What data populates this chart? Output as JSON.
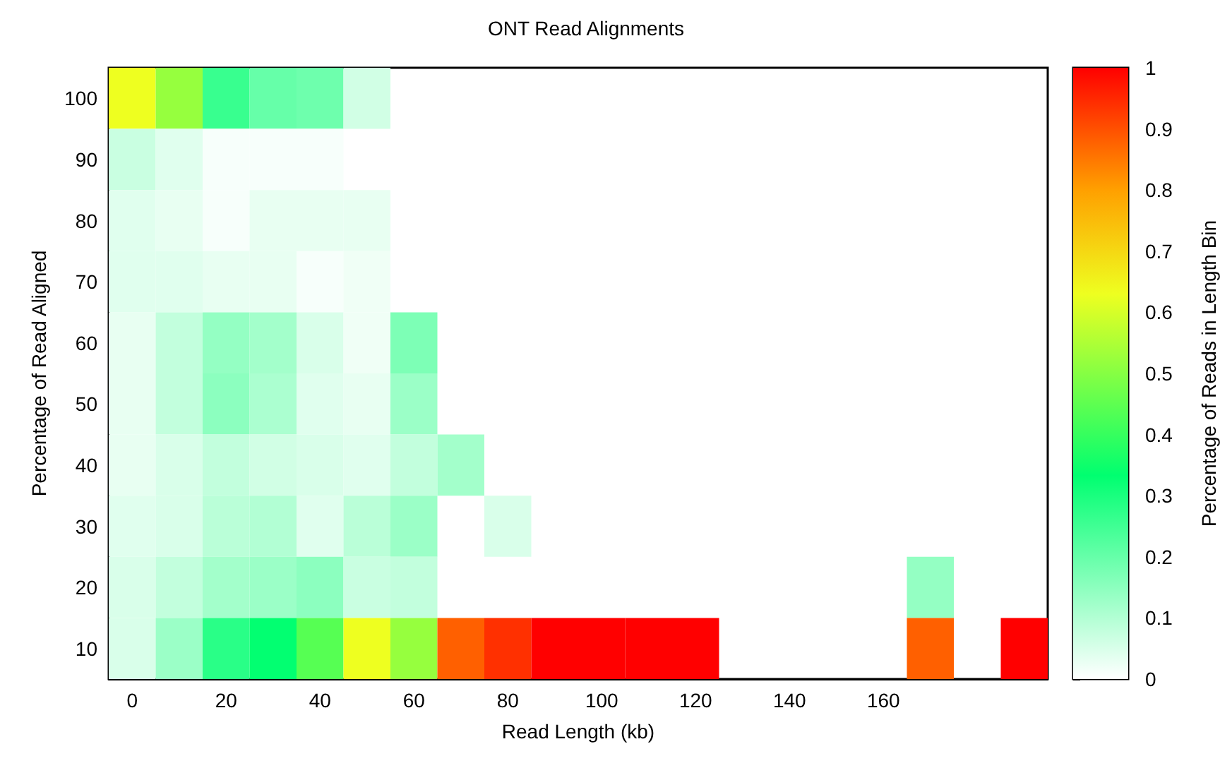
{
  "chart_data": {
    "type": "heatmap",
    "title": "ONT Read Alignments",
    "xlabel": "Read Length (kb)",
    "ylabel": "Percentage of Read Aligned",
    "clabel": "Percentage of Reads in Length Bin",
    "categories": [
      "0",
      null,
      "20",
      null,
      "40",
      null,
      "60",
      null,
      "80",
      null,
      "100",
      null,
      "120",
      null,
      "140",
      null,
      "160",
      null,
      null,
      null
    ],
    "y_categories": [
      "100",
      "90",
      "80",
      "70",
      "60",
      "50",
      "40",
      "30",
      "20",
      "10"
    ],
    "clim": [
      0,
      1
    ],
    "cticks": [
      0,
      0.1,
      0.2,
      0.3,
      0.4,
      0.5,
      0.6,
      0.7,
      0.8,
      0.9,
      1
    ],
    "cells": [
      [
        0.63,
        0.52,
        0.26,
        0.2,
        0.19,
        0.06,
        null,
        null,
        null,
        null,
        null,
        null,
        null,
        null,
        null,
        null,
        null,
        null,
        null,
        null
      ],
      [
        0.07,
        0.04,
        0.01,
        0.01,
        0.01,
        null,
        null,
        null,
        null,
        null,
        null,
        null,
        null,
        null,
        null,
        null,
        null,
        null,
        null,
        null
      ],
      [
        0.04,
        0.03,
        0.01,
        0.03,
        0.03,
        0.03,
        null,
        null,
        null,
        null,
        null,
        null,
        null,
        null,
        null,
        null,
        null,
        null,
        null,
        null
      ],
      [
        0.04,
        0.04,
        0.03,
        0.03,
        0.01,
        0.02,
        null,
        null,
        null,
        null,
        null,
        null,
        null,
        null,
        null,
        null,
        null,
        null,
        null,
        null
      ],
      [
        0.03,
        0.08,
        0.14,
        0.12,
        0.05,
        0.02,
        0.17,
        null,
        null,
        null,
        null,
        null,
        null,
        null,
        null,
        null,
        null,
        null,
        null,
        null
      ],
      [
        0.03,
        0.08,
        0.15,
        0.11,
        0.04,
        0.03,
        0.13,
        null,
        null,
        null,
        null,
        null,
        null,
        null,
        null,
        null,
        null,
        null,
        null,
        null
      ],
      [
        0.03,
        0.05,
        0.08,
        0.06,
        0.05,
        0.04,
        0.08,
        0.12,
        null,
        null,
        null,
        null,
        null,
        null,
        null,
        null,
        null,
        null,
        null,
        null
      ],
      [
        0.04,
        0.05,
        0.09,
        0.1,
        0.04,
        0.09,
        0.13,
        null,
        0.05,
        null,
        null,
        null,
        null,
        null,
        null,
        null,
        null,
        null,
        null,
        null
      ],
      [
        0.05,
        0.08,
        0.12,
        0.13,
        0.15,
        0.07,
        0.08,
        null,
        null,
        null,
        null,
        null,
        null,
        null,
        null,
        null,
        null,
        0.14,
        null,
        null
      ],
      [
        0.05,
        0.13,
        0.28,
        0.33,
        0.44,
        0.63,
        0.52,
        0.88,
        0.94,
        1,
        1,
        1,
        1,
        null,
        null,
        null,
        null,
        0.88,
        null,
        1
      ]
    ]
  }
}
